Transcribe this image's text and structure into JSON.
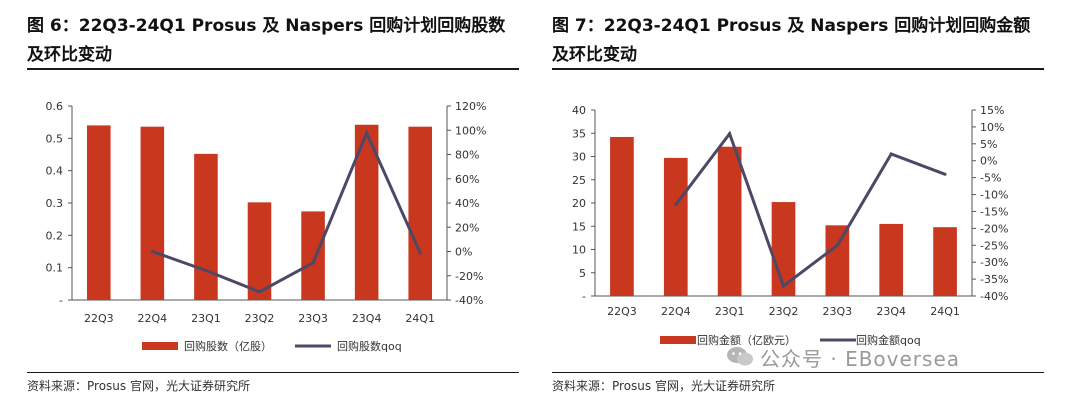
{
  "colors": {
    "bar": "#c9381e",
    "line": "#4d4866",
    "axis": "#555555",
    "text": "#333333"
  },
  "charts": [
    {
      "title": "图 6：22Q3-24Q1 Prosus 及 Naspers 回购计划回购股数及环比变动",
      "source": "资料来源：Prosus 官网，光大证券研究所",
      "chart_data": {
        "type": "bar+line",
        "categories": [
          "22Q3",
          "22Q4",
          "23Q1",
          "23Q2",
          "23Q3",
          "23Q4",
          "24Q1"
        ],
        "series": [
          {
            "name": "回购股数（亿股）",
            "type": "bar",
            "axis": "left",
            "values": [
              0.54,
              0.536,
              0.452,
              0.302,
              0.274,
              0.542,
              0.536
            ]
          },
          {
            "name": "回购股数qoq",
            "type": "line",
            "axis": "right",
            "values": [
              null,
              0,
              -15.7,
              -33.2,
              -9.3,
              97.8,
              -1.1
            ]
          }
        ],
        "left_axis": {
          "min": 0,
          "max": 0.6,
          "ticks": [
            "-",
            "0.1",
            "0.2",
            "0.3",
            "0.4",
            "0.5",
            "0.6"
          ]
        },
        "right_axis": {
          "min": -40,
          "max": 120,
          "ticks": [
            "-40%",
            "-20%",
            "0%",
            "20%",
            "40%",
            "60%",
            "80%",
            "100%",
            "120%"
          ]
        }
      }
    },
    {
      "title": "图 7：22Q3-24Q1 Prosus 及 Naspers 回购计划回购金额及环比变动",
      "source": "资料来源：Prosus 官网，光大证券研究所",
      "chart_data": {
        "type": "bar+line",
        "categories": [
          "22Q3",
          "22Q4",
          "23Q1",
          "23Q2",
          "23Q3",
          "23Q4",
          "24Q1"
        ],
        "series": [
          {
            "name": "回购金额（亿欧元）",
            "type": "bar",
            "axis": "left",
            "values": [
              34.2,
              29.7,
              32.1,
              20.2,
              15.2,
              15.5,
              14.8
            ]
          },
          {
            "name": "回购金额qoq",
            "type": "line",
            "axis": "right",
            "values": [
              null,
              -13,
              8,
              -37,
              -25,
              2,
              -4
            ]
          }
        ],
        "left_axis": {
          "min": 0,
          "max": 40,
          "ticks": [
            "-",
            "5",
            "10",
            "15",
            "20",
            "25",
            "30",
            "35",
            "40"
          ]
        },
        "right_axis": {
          "min": -40,
          "max": 15,
          "ticks": [
            "-40%",
            "-35%",
            "-30%",
            "-25%",
            "-20%",
            "-15%",
            "-10%",
            "-5%",
            "0%",
            "5%",
            "10%",
            "15%"
          ]
        }
      }
    }
  ],
  "watermark": "公众号 · EBoversea"
}
